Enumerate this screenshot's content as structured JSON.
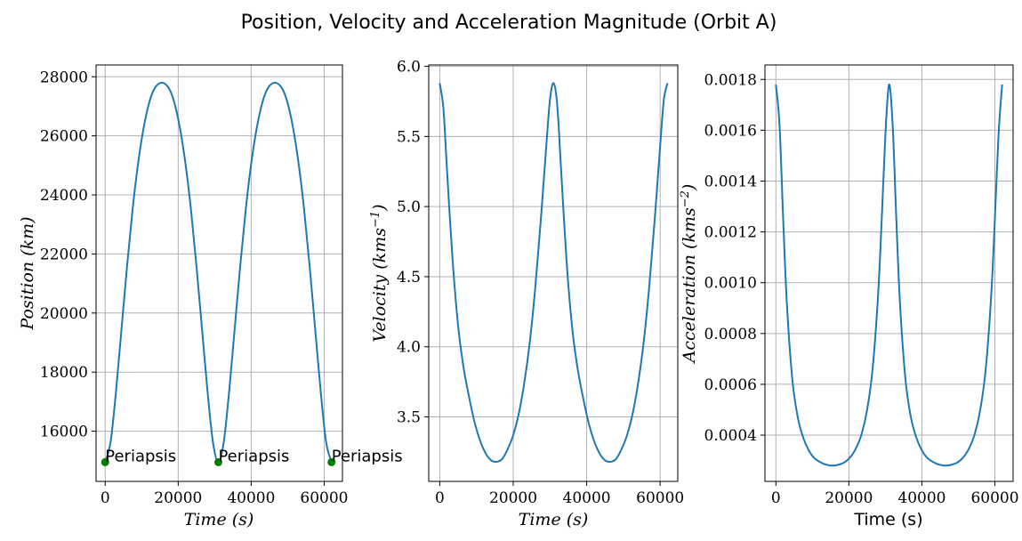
{
  "figure": {
    "title": "Position, Velocity and Acceleration Magnitude (Orbit A)",
    "line_color": "#1f77b4",
    "marker_color": "#008000"
  },
  "chart_data": [
    {
      "type": "line",
      "title": "",
      "xlabel": "Time (s)",
      "ylabel": "Position (km)",
      "xlim": [
        -2500,
        65000
      ],
      "ylim": [
        14300,
        28400
      ],
      "xticks": [
        0,
        20000,
        40000,
        60000
      ],
      "yticks": [
        16000,
        18000,
        20000,
        22000,
        24000,
        26000,
        28000
      ],
      "grid": true,
      "series": [
        {
          "x": [
            0,
            1500,
            3000,
            4500,
            6000,
            7500,
            9000,
            10500,
            12000,
            13500,
            15500,
            17500,
            19000,
            20500,
            22000,
            23500,
            25000,
            26500,
            28000,
            29500,
            31000,
            32500,
            34000,
            35500,
            37000,
            38500,
            40000,
            41500,
            43000,
            44500,
            46500,
            48500,
            50000,
            51500,
            53000,
            54500,
            56000,
            57500,
            59000,
            60500,
            62000
          ],
          "values": [
            14950,
            15650,
            17400,
            19500,
            21600,
            23500,
            25050,
            26250,
            27100,
            27600,
            27800,
            27600,
            27100,
            26250,
            25050,
            23500,
            21600,
            19500,
            17400,
            15650,
            14950,
            15650,
            17400,
            19500,
            21600,
            23500,
            25050,
            26250,
            27100,
            27600,
            27800,
            27600,
            27100,
            26250,
            25050,
            23500,
            21600,
            19500,
            17400,
            15650,
            14950
          ]
        }
      ],
      "points": [
        {
          "x": 0,
          "y": 14950,
          "label": "Periapsis"
        },
        {
          "x": 31000,
          "y": 14950,
          "label": "Periapsis"
        },
        {
          "x": 62000,
          "y": 14950,
          "label": "Periapsis"
        }
      ]
    },
    {
      "type": "line",
      "title": "",
      "xlabel": "Time (s)",
      "ylabel": "Velocity (kms−1)",
      "xlim": [
        -3000,
        64800
      ],
      "ylim": [
        3.04,
        6.01
      ],
      "xticks": [
        0,
        20000,
        40000,
        60000
      ],
      "yticks": [
        3.5,
        4.0,
        4.5,
        5.0,
        5.5,
        6.0
      ],
      "grid": true,
      "series": [
        {
          "x": [
            0,
            1000,
            2000,
            3500,
            5000,
            6500,
            8000,
            9500,
            11000,
            12500,
            14000,
            15500,
            17000,
            18500,
            20000,
            21500,
            23000,
            24500,
            26000,
            27500,
            29000,
            30000,
            31000,
            32000,
            33000,
            34500,
            36000,
            37500,
            39000,
            40500,
            42000,
            43500,
            45000,
            46500,
            48000,
            49500,
            51000,
            52500,
            54000,
            55500,
            57000,
            58500,
            60000,
            61000,
            62000
          ],
          "values": [
            5.88,
            5.7,
            5.25,
            4.62,
            4.15,
            3.85,
            3.64,
            3.46,
            3.33,
            3.24,
            3.19,
            3.18,
            3.2,
            3.27,
            3.37,
            3.52,
            3.74,
            4.03,
            4.42,
            4.9,
            5.43,
            5.76,
            5.88,
            5.72,
            5.28,
            4.62,
            4.15,
            3.85,
            3.64,
            3.46,
            3.33,
            3.24,
            3.19,
            3.18,
            3.2,
            3.27,
            3.37,
            3.52,
            3.74,
            4.03,
            4.42,
            4.9,
            5.43,
            5.76,
            5.88
          ]
        }
      ]
    },
    {
      "type": "line",
      "title": "",
      "xlabel": "Time (s)",
      "ylabel": "Acceleration (kms−2)",
      "xlim": [
        -3000,
        65000
      ],
      "ylim": [
        0.000218,
        0.001857
      ],
      "xticks": [
        0,
        20000,
        40000,
        60000
      ],
      "yticks": [
        0.0004,
        0.0006,
        0.0008,
        0.001,
        0.0012,
        0.0014,
        0.0016,
        0.0018
      ],
      "grid": true,
      "series": [
        {
          "x": [
            0,
            1000,
            2000,
            3000,
            4500,
            6000,
            7500,
            9000,
            10500,
            12000,
            13500,
            15500,
            17500,
            19000,
            20500,
            22000,
            23500,
            25000,
            26500,
            28000,
            29000,
            30000,
            31000,
            32000,
            33000,
            34000,
            35500,
            37000,
            38500,
            40000,
            41500,
            43000,
            44500,
            46500,
            48500,
            50000,
            51500,
            53000,
            54500,
            56000,
            57500,
            59000,
            60000,
            61000,
            62000
          ],
          "values": [
            0.00178,
            0.00162,
            0.00125,
            0.00092,
            0.00062,
            0.00047,
            0.00039,
            0.00034,
            0.00031,
            0.000295,
            0.000285,
            0.00028,
            0.000285,
            0.000295,
            0.000315,
            0.00035,
            0.000405,
            0.0005,
            0.00066,
            0.00095,
            0.00125,
            0.00158,
            0.00178,
            0.00162,
            0.00125,
            0.00092,
            0.00062,
            0.00047,
            0.00039,
            0.00034,
            0.00031,
            0.000295,
            0.000285,
            0.00028,
            0.000285,
            0.000295,
            0.000315,
            0.00035,
            0.000405,
            0.0005,
            0.00066,
            0.00095,
            0.00125,
            0.00158,
            0.00178
          ]
        }
      ]
    }
  ]
}
